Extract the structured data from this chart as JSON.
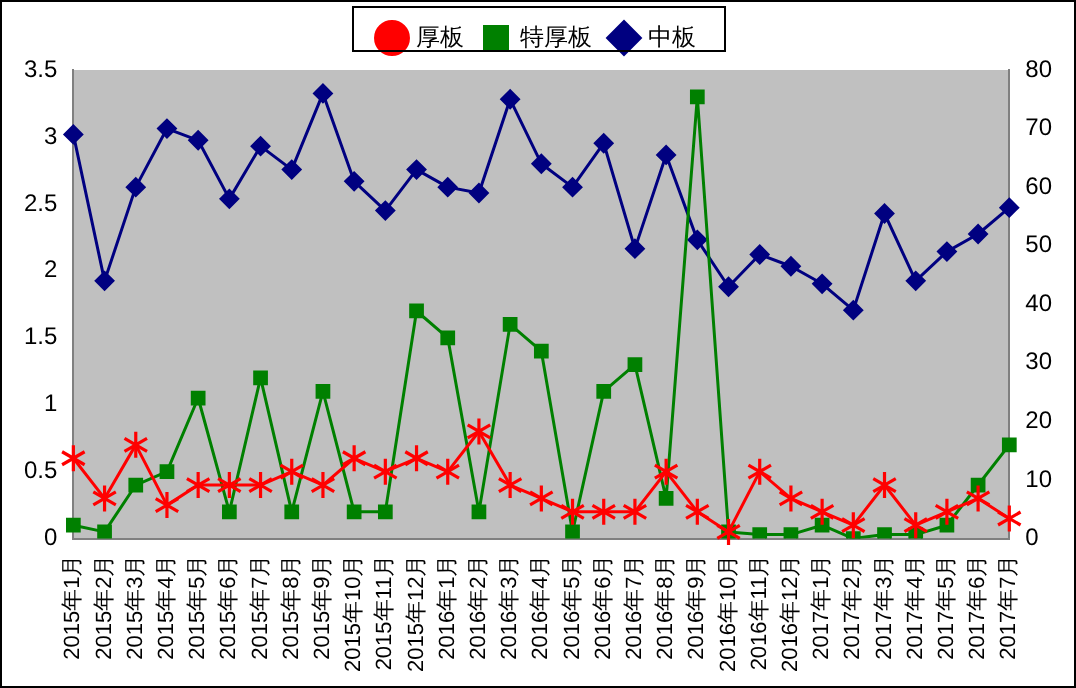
{
  "chart_data": {
    "type": "line",
    "categories": [
      "2015年1月",
      "2015年2月",
      "2015年3月",
      "2015年4月",
      "2015年5月",
      "2015年6月",
      "2015年7月",
      "2015年8月",
      "2015年9月",
      "2015年10月",
      "2015年11月",
      "2015年12月",
      "2016年1月",
      "2016年2月",
      "2016年3月",
      "2016年4月",
      "2016年5月",
      "2016年6月",
      "2016年7月",
      "2016年8月",
      "2016年9月",
      "2016年10月",
      "2016年11月",
      "2016年12月",
      "2017年1月",
      "2017年2月",
      "2017年3月",
      "2017年4月",
      "2017年5月",
      "2017年6月",
      "2017年7月"
    ],
    "series": [
      {
        "name": "厚板",
        "color": "#ff0000",
        "marker": "cross",
        "values": [
          0.6,
          0.3,
          0.7,
          0.25,
          0.4,
          0.4,
          0.4,
          0.5,
          0.4,
          0.6,
          0.5,
          0.6,
          0.5,
          0.8,
          0.4,
          0.3,
          0.2,
          0.2,
          0.2,
          0.5,
          0.2,
          0.05,
          0.5,
          0.3,
          0.2,
          0.1,
          0.4,
          0.1,
          0.2,
          0.3,
          0.15
        ]
      },
      {
        "name": "特厚板",
        "color": "#008000",
        "marker": "square",
        "values": [
          0.1,
          0.05,
          0.4,
          0.5,
          1.05,
          0.2,
          1.2,
          0.2,
          1.1,
          0.2,
          0.2,
          1.7,
          1.5,
          0.2,
          1.6,
          1.4,
          0.05,
          1.1,
          1.3,
          0.3,
          3.3,
          0.05,
          0.03,
          0.03,
          0.1,
          0,
          0.03,
          0.03,
          0.1,
          0.4,
          0.7
        ]
      },
      {
        "name": "中板",
        "color": "#000080",
        "marker": "diamond",
        "axis": "y2",
        "values": [
          69,
          44,
          60,
          70,
          68,
          58,
          67,
          63,
          76,
          61,
          56,
          63,
          60,
          59,
          75,
          64,
          60,
          67.5,
          49.5,
          65.5,
          51,
          43,
          48.5,
          46.5,
          43.5,
          39,
          55.5,
          44,
          49,
          52,
          56.5
        ]
      }
    ],
    "ylim": [
      0,
      3.5
    ],
    "yticks": [
      0,
      0.5,
      1,
      1.5,
      2,
      2.5,
      3,
      3.5
    ],
    "y2lim": [
      0,
      80
    ],
    "y2ticks": [
      0,
      10,
      20,
      30,
      40,
      50,
      60,
      70,
      80
    ],
    "grid": false,
    "legend": "top"
  }
}
